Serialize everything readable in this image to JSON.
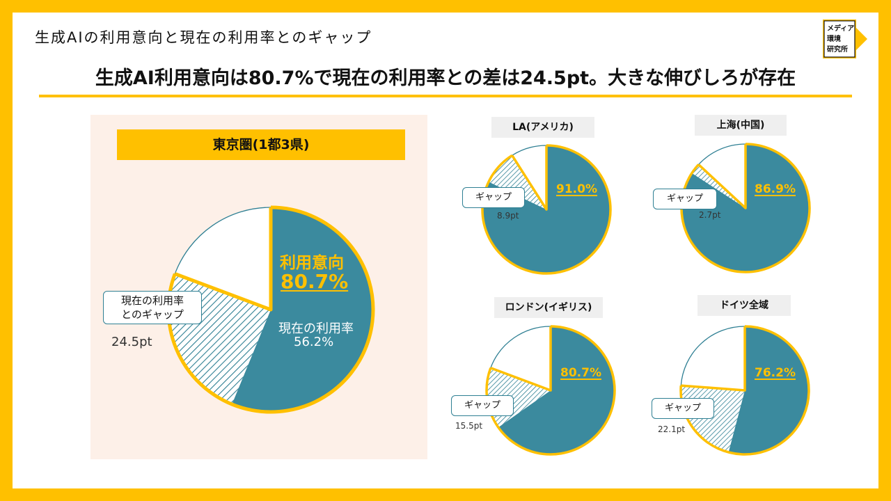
{
  "header": {
    "title": "生成AIの利用意向と現在の利用率とのギャップ",
    "headline": "生成AI利用意向は80.7%で現在の利用率との差は24.5pt。大きな伸びしろが存在"
  },
  "logo": {
    "lines": [
      "メディア",
      "環境",
      "研究所"
    ]
  },
  "colors": {
    "accent": "#FFC000",
    "teal": "#3B8A9E",
    "outline": "#2E7F93"
  },
  "chart_data": [
    {
      "type": "pie",
      "title": "東京圏(1都3県)",
      "slices": [
        {
          "label": "現在の利用率",
          "value": 56.2
        },
        {
          "label": "現在の利用率とのギャップ",
          "value": 24.5
        },
        {
          "label": "",
          "value": 19.3
        }
      ],
      "annotations": {
        "intent_label": "利用意向",
        "intent_value": "80.7%",
        "current_label": "現在の利用率",
        "current_value": "56.2%",
        "gap_label_line1": "現在の利用率",
        "gap_label_line2": "とのギャップ",
        "gap_value": "24.5pt"
      }
    },
    {
      "type": "pie",
      "title": "LA(アメリカ)",
      "slices": [
        {
          "label": "現在の利用率",
          "value": 82.1
        },
        {
          "label": "ギャップ",
          "value": 8.9
        },
        {
          "label": "",
          "value": 9.0
        }
      ],
      "annotations": {
        "intent_value": "91.0%",
        "gap_label": "ギャップ",
        "gap_value": "8.9pt"
      }
    },
    {
      "type": "pie",
      "title": "上海(中国)",
      "slices": [
        {
          "label": "現在の利用率",
          "value": 84.2
        },
        {
          "label": "ギャップ",
          "value": 2.7
        },
        {
          "label": "",
          "value": 13.1
        }
      ],
      "annotations": {
        "intent_value": "86.9%",
        "gap_label": "ギャップ",
        "gap_value": "2.7pt"
      }
    },
    {
      "type": "pie",
      "title": "ロンドン(イギリス)",
      "slices": [
        {
          "label": "現在の利用率",
          "value": 65.2
        },
        {
          "label": "ギャップ",
          "value": 15.5
        },
        {
          "label": "",
          "value": 19.3
        }
      ],
      "annotations": {
        "intent_value": "80.7%",
        "gap_label": "ギャップ",
        "gap_value": "15.5pt"
      }
    },
    {
      "type": "pie",
      "title": "ドイツ全域",
      "slices": [
        {
          "label": "現在の利用率",
          "value": 54.1
        },
        {
          "label": "ギャップ",
          "value": 22.1
        },
        {
          "label": "",
          "value": 23.8
        }
      ],
      "annotations": {
        "intent_value": "76.2%",
        "gap_label": "ギャップ",
        "gap_value": "22.1pt"
      }
    }
  ]
}
